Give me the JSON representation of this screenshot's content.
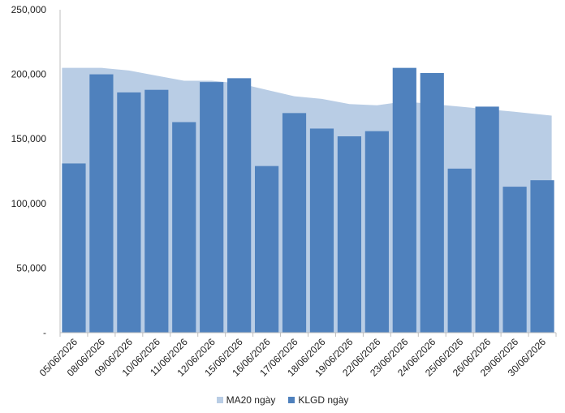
{
  "chart_data": {
    "type": "bar",
    "categories": [
      "05/06/2026",
      "08/06/2026",
      "09/06/2026",
      "10/06/2026",
      "11/06/2026",
      "12/06/2026",
      "15/06/2026",
      "16/06/2026",
      "17/06/2026",
      "18/06/2026",
      "19/06/2026",
      "22/06/2026",
      "23/06/2026",
      "24/06/2026",
      "25/06/2026",
      "26/06/2026",
      "29/06/2026",
      "30/06/2026"
    ],
    "series": [
      {
        "name": "MA20 ngày",
        "kind": "area",
        "color": "#b9cde5",
        "values": [
          205000,
          205000,
          203000,
          199000,
          195000,
          195000,
          193000,
          188000,
          183000,
          181000,
          177000,
          176000,
          179000,
          177000,
          175000,
          173000,
          171000,
          168000
        ]
      },
      {
        "name": "KLGD ngày",
        "kind": "bar",
        "color": "#4f81bd",
        "values": [
          131000,
          200000,
          186000,
          188000,
          163000,
          194000,
          197000,
          129000,
          170000,
          158000,
          152000,
          156000,
          205000,
          201000,
          127000,
          175000,
          113000,
          118000
        ]
      }
    ],
    "y_ticks": [
      {
        "value": 0,
        "label": "-"
      },
      {
        "value": 50000,
        "label": "50,000"
      },
      {
        "value": 100000,
        "label": "100,000"
      },
      {
        "value": 150000,
        "label": "150,000"
      },
      {
        "value": 200000,
        "label": "200,000"
      },
      {
        "value": 250000,
        "label": "250,000"
      }
    ],
    "ylim": [
      0,
      250000
    ],
    "grid": false,
    "legend_position": "bottom-center",
    "axis_color": "#bfbfbf"
  }
}
